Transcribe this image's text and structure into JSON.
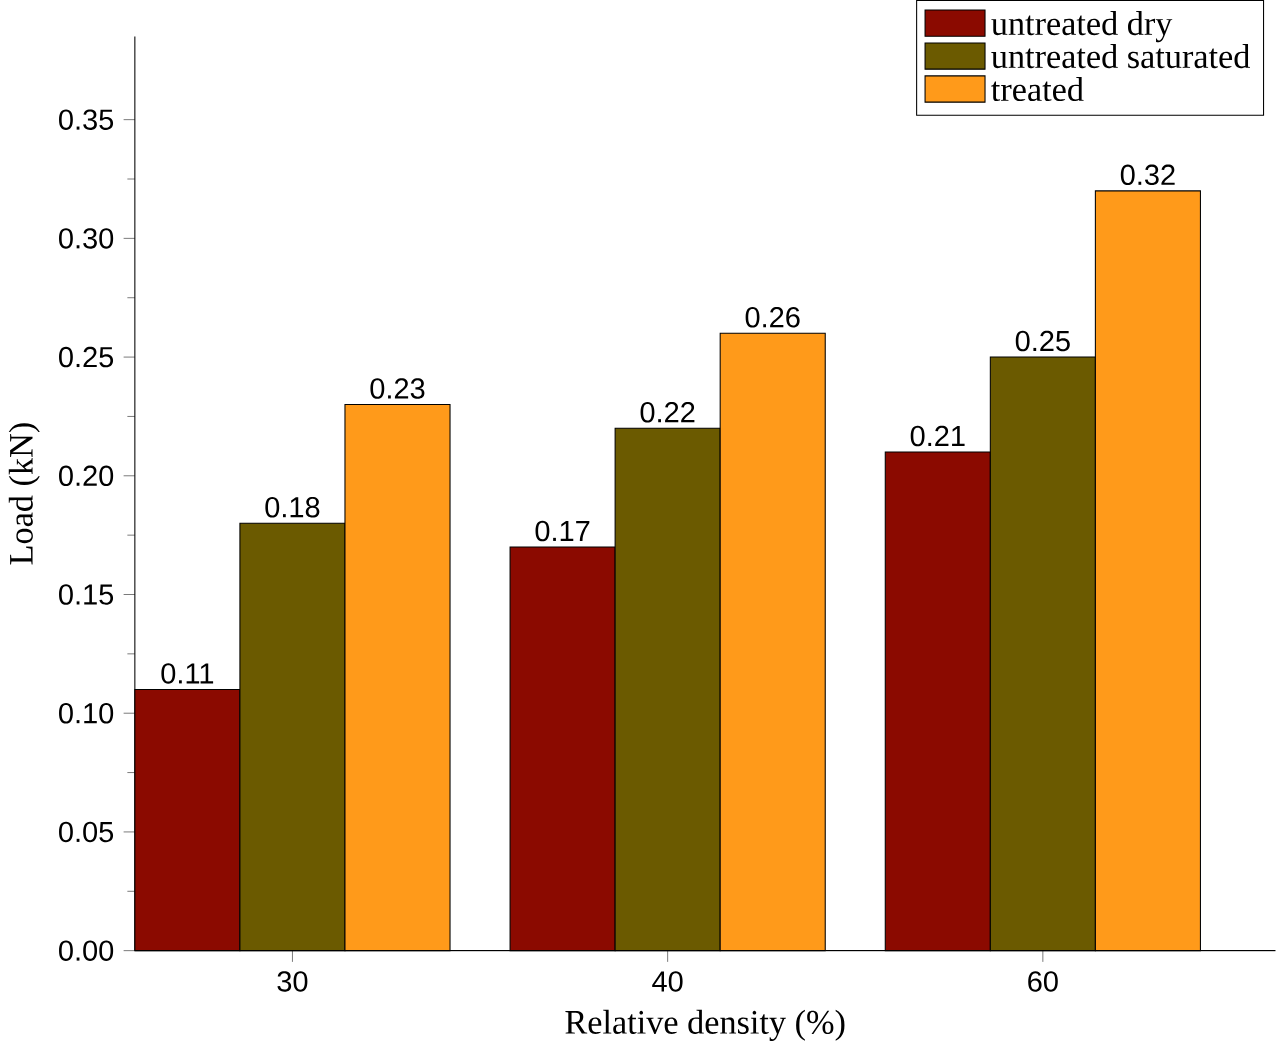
{
  "chart_data": {
    "type": "bar",
    "xlabel": "Relative density (%)",
    "ylabel": "Load (kN)",
    "categories": [
      "30",
      "40",
      "60"
    ],
    "series": [
      {
        "name": "untreated dry",
        "color": "#8b0a00",
        "values": [
          0.11,
          0.17,
          0.21
        ]
      },
      {
        "name": "untreated saturated",
        "color": "#6b5a00",
        "values": [
          0.18,
          0.22,
          0.25
        ]
      },
      {
        "name": "treated",
        "color": "#ff9a1a",
        "values": [
          0.23,
          0.26,
          0.32
        ]
      }
    ],
    "ylim": [
      0,
      0.385
    ],
    "yticks": [
      {
        "value": 0,
        "label": "0.00"
      },
      {
        "value": 0.05,
        "label": "0.05"
      },
      {
        "value": 0.1,
        "label": "0.10"
      },
      {
        "value": 0.15,
        "label": "0.15"
      },
      {
        "value": 0.2,
        "label": "0.20"
      },
      {
        "value": 0.25,
        "label": "0.25"
      },
      {
        "value": 0.3,
        "label": "0.30"
      },
      {
        "value": 0.35,
        "label": "0.35"
      }
    ],
    "data_labels": true,
    "legend": "top right",
    "grid": false
  }
}
